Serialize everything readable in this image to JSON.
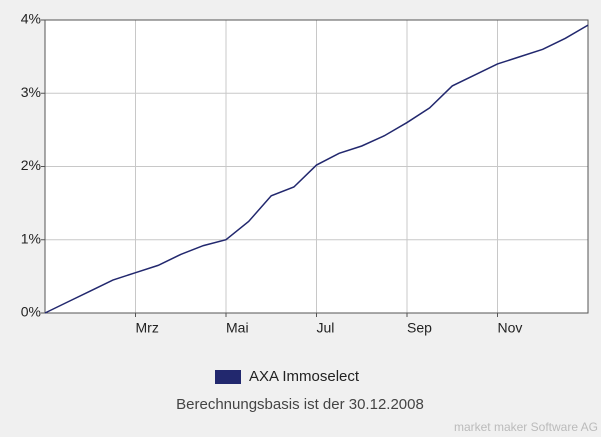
{
  "chart_data": {
    "type": "line",
    "categories": [
      null,
      null,
      null,
      null,
      "Mrz",
      null,
      null,
      null,
      "Mai",
      null,
      null,
      null,
      "Jul",
      null,
      null,
      null,
      "Sep",
      null,
      null,
      null,
      "Nov",
      null,
      null,
      null,
      null
    ],
    "series": [
      {
        "name": "AXA Immoselect",
        "color": "#22286e",
        "values": [
          0.0,
          0.15,
          0.3,
          0.45,
          0.55,
          0.65,
          0.8,
          0.92,
          1.0,
          1.25,
          1.6,
          1.72,
          2.02,
          2.18,
          2.28,
          2.42,
          2.6,
          2.8,
          3.1,
          3.25,
          3.4,
          3.5,
          3.6,
          3.75,
          3.93
        ]
      }
    ],
    "ylim": [
      0,
      4
    ],
    "yticks": [
      {
        "value": 0,
        "label": "0%"
      },
      {
        "value": 1,
        "label": "1%"
      },
      {
        "value": 2,
        "label": "2%"
      },
      {
        "value": 3,
        "label": "3%"
      },
      {
        "value": 4,
        "label": "4%"
      }
    ],
    "grid": true,
    "subtitle": "Berechnungsbasis ist der 30.12.2008",
    "source": "market maker Software AG"
  }
}
